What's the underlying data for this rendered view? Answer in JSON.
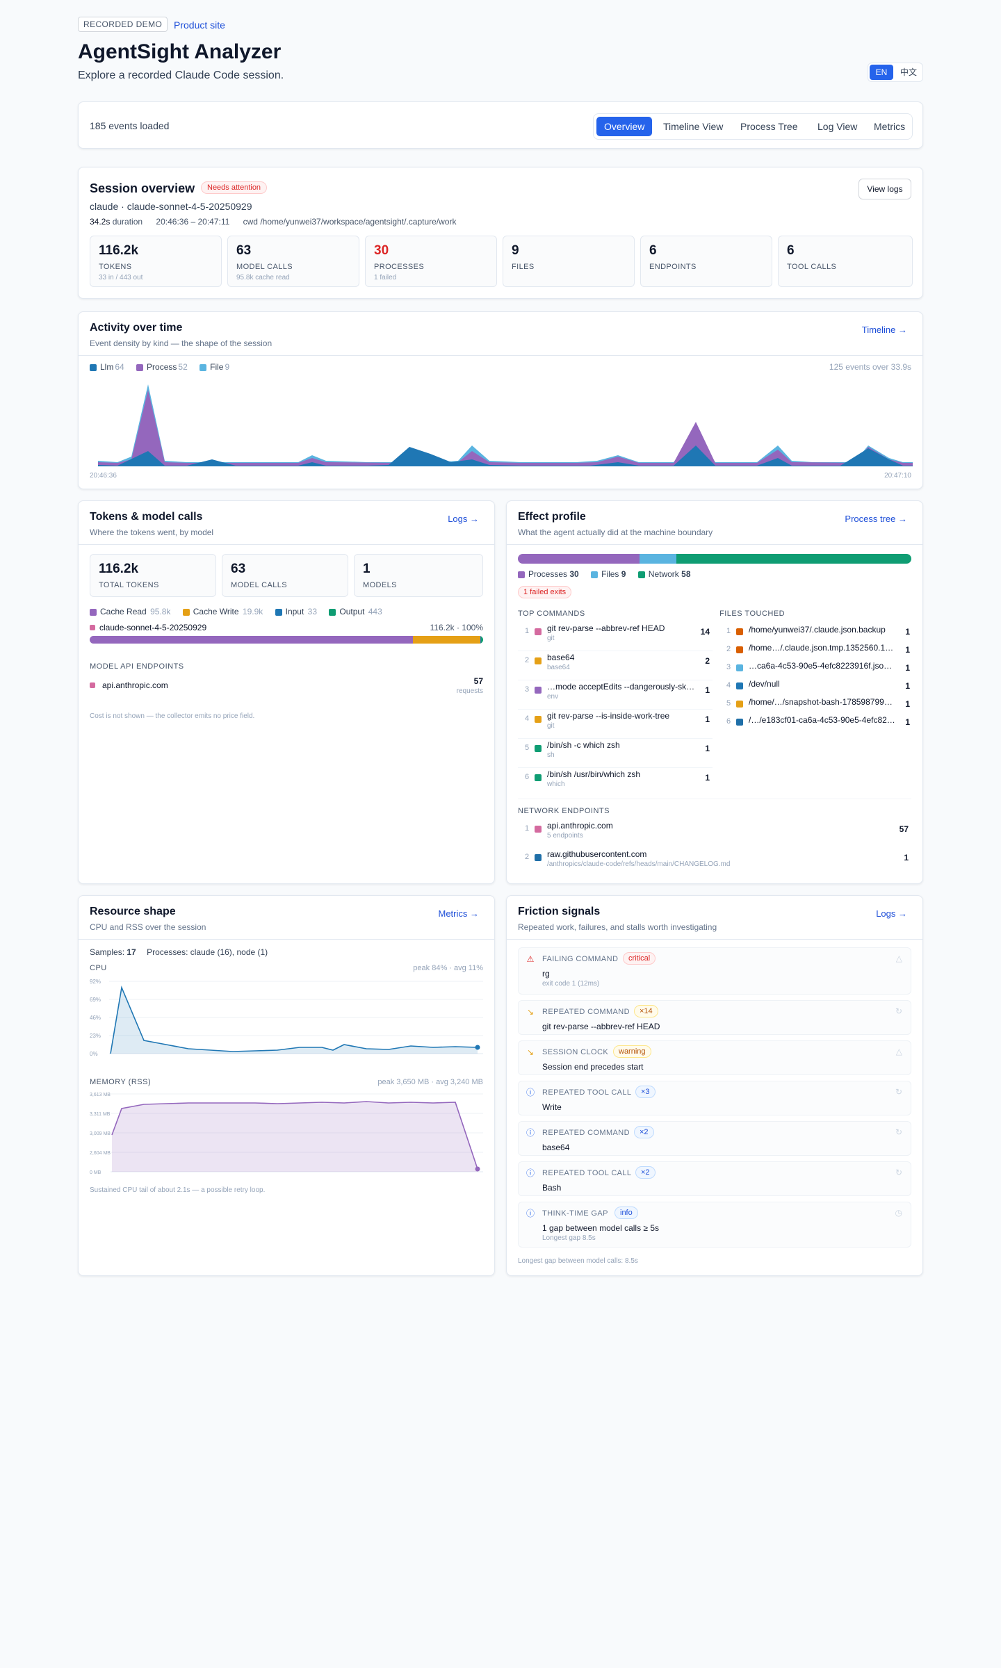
{
  "header": {
    "badge": "RECORDED DEMO",
    "product_link": "Product site",
    "title": "AgentSight Analyzer",
    "subtitle": "Explore a recorded Claude Code session.",
    "lang_en": "EN",
    "lang_zh": "中文"
  },
  "toolbar": {
    "events_loaded": "185 events loaded",
    "tabs": [
      "Overview",
      "Timeline View",
      "Process Tree",
      "Log View",
      "Metrics"
    ],
    "active_tab": "Overview"
  },
  "session": {
    "title": "Session overview",
    "status": "Needs attention",
    "agent_line": "claude · claude-sonnet-4-5-20250929",
    "duration_value": "34.2s",
    "duration_label": "duration",
    "time_range": "20:46:36 – 20:47:11",
    "cwd": "cwd /home/yunwei37/workspace/agentsight/.capture/work",
    "view_logs": "View logs",
    "stats": [
      {
        "value": "116.2k",
        "label": "TOKENS",
        "sub": "33 in / 443 out",
        "alert": false
      },
      {
        "value": "63",
        "label": "MODEL CALLS",
        "sub": "95.8k cache read",
        "alert": false
      },
      {
        "value": "30",
        "label": "PROCESSES",
        "sub": "1 failed",
        "alert": true
      },
      {
        "value": "9",
        "label": "FILES",
        "sub": "",
        "alert": false
      },
      {
        "value": "6",
        "label": "ENDPOINTS",
        "sub": "",
        "alert": false
      },
      {
        "value": "6",
        "label": "TOOL CALLS",
        "sub": "",
        "alert": false
      }
    ]
  },
  "activity": {
    "title": "Activity over time",
    "subtitle": "Event density by kind — the shape of the session",
    "link": "Timeline →",
    "legend": [
      {
        "name": "Llm",
        "count": "64",
        "color": "#1f77b4"
      },
      {
        "name": "Process",
        "count": "52",
        "color": "#9467bd"
      },
      {
        "name": "File",
        "count": "9",
        "color": "#5ab4e0"
      }
    ],
    "summary": "125 events over 33.9s",
    "x_start": "20:46:36",
    "x_end": "20:47:10"
  },
  "tokens": {
    "title": "Tokens & model calls",
    "subtitle": "Where the tokens went, by model",
    "link": "Logs →",
    "stats": [
      {
        "value": "116.2k",
        "label": "TOTAL TOKENS"
      },
      {
        "value": "63",
        "label": "MODEL CALLS"
      },
      {
        "value": "1",
        "label": "MODELS"
      }
    ],
    "legend": [
      {
        "name": "Cache Read",
        "count": "95.8k",
        "color": "#9467bd"
      },
      {
        "name": "Cache Write",
        "count": "19.9k",
        "color": "#e5a016"
      },
      {
        "name": "Input",
        "count": "33",
        "color": "#1f77b4"
      },
      {
        "name": "Output",
        "count": "443",
        "color": "#0f9d73"
      }
    ],
    "model_name": "claude-sonnet-4-5-20250929",
    "model_total": "116.2k · 100%",
    "model_share": {
      "cache_read": 95.8,
      "cache_write": 19.9,
      "input": 0.033,
      "output": 0.443
    },
    "endpoints_label": "MODEL API ENDPOINTS",
    "endpoint_name": "api.anthropic.com",
    "endpoint_count": "57",
    "endpoint_unit": "requests",
    "footnote": "Cost is not shown — the collector emits no price field."
  },
  "effect": {
    "title": "Effect profile",
    "subtitle": "What the agent actually did at the machine boundary",
    "link": "Process tree →",
    "bar": [
      {
        "name": "Processes",
        "count": "30",
        "value": 30,
        "color": "#9467bd"
      },
      {
        "name": "Files",
        "count": "9",
        "value": 9,
        "color": "#5ab4e0"
      },
      {
        "name": "Network",
        "count": "58",
        "value": 58,
        "color": "#0f9d73"
      }
    ],
    "failed": "1 failed exits",
    "top_commands_label": "TOP COMMANDS",
    "commands": [
      {
        "n": "1",
        "cmd": "git rev-parse --abbrev-ref HEAD",
        "bin": "git",
        "count": "14",
        "color": "#d46a9f"
      },
      {
        "n": "2",
        "cmd": "base64",
        "bin": "base64",
        "count": "2",
        "color": "#e5a016"
      },
      {
        "n": "3",
        "cmd": "…mode acceptEdits --dangerously-ski…",
        "bin": "env",
        "count": "1",
        "color": "#9467bd"
      },
      {
        "n": "4",
        "cmd": "git rev-parse --is-inside-work-tree",
        "bin": "git",
        "count": "1",
        "color": "#e5a016"
      },
      {
        "n": "5",
        "cmd": "/bin/sh -c which zsh",
        "bin": "sh",
        "count": "1",
        "color": "#0f9d73"
      },
      {
        "n": "6",
        "cmd": "/bin/sh /usr/bin/which zsh",
        "bin": "which",
        "count": "1",
        "color": "#0f9d73"
      }
    ],
    "files_label": "FILES TOUCHED",
    "files": [
      {
        "n": "1",
        "path": "/home/yunwei37/.claude.json.backup",
        "count": "1",
        "color": "#d95f02"
      },
      {
        "n": "2",
        "path": "/home…/.claude.json.tmp.1352560.17…",
        "count": "1",
        "color": "#d95f02"
      },
      {
        "n": "3",
        "path": "…ca6a-4c53-90e5-4efc8223916f.json…",
        "count": "1",
        "color": "#5ab4e0"
      },
      {
        "n": "4",
        "path": "/dev/null",
        "count": "1",
        "color": "#1f77b4"
      },
      {
        "n": "5",
        "path": "/home/…/snapshot-bash-1785987999…",
        "count": "1",
        "color": "#e5a016"
      },
      {
        "n": "6",
        "path": "/…/e183cf01-ca6a-4c53-90e5-4efc822…",
        "count": "1",
        "color": "#1f6fa8"
      }
    ],
    "network_label": "NETWORK ENDPOINTS",
    "network": [
      {
        "n": "1",
        "host": "api.anthropic.com",
        "sub": "5 endpoints",
        "count": "57",
        "color": "#d46a9f"
      },
      {
        "n": "2",
        "host": "raw.githubusercontent.com",
        "sub": "/anthropics/claude-code/refs/heads/main/CHANGELOG.md",
        "count": "1",
        "color": "#1f6fa8"
      }
    ]
  },
  "resource": {
    "title": "Resource shape",
    "subtitle": "CPU and RSS over the session",
    "link": "Metrics →",
    "samples_label": "Samples:",
    "samples_value": "17",
    "processes": "Processes: claude (16), node (1)",
    "cpu_label": "CPU",
    "cpu_summary": "peak 84% · avg 11%",
    "cpu_ticks": [
      "92%",
      "69%",
      "46%",
      "23%",
      "0%"
    ],
    "mem_label": "MEMORY (RSS)",
    "mem_summary": "peak 3,650 MB · avg 3,240 MB",
    "mem_ticks": [
      "3,613 MB",
      "3,311 MB",
      "3,009 MB",
      "2,604 MB",
      "0 MB"
    ],
    "footnote": "Sustained CPU tail of about 2.1s — a possible retry loop.",
    "cpu_color": "#1f77b4",
    "mem_color": "#9467bd"
  },
  "friction": {
    "title": "Friction signals",
    "subtitle": "Repeated work, failures, and stalls worth investigating",
    "link": "Logs →",
    "signals": [
      {
        "kind": "FAILING COMMAND",
        "badge": "critical",
        "level": "critical",
        "text": "rg",
        "sub": "exit code 1 (12ms)",
        "icon": "warning-icon"
      },
      {
        "kind": "REPEATED COMMAND",
        "badge": "×14",
        "level": "warning",
        "text": "git rev-parse --abbrev-ref HEAD",
        "sub": "",
        "icon": "trend-icon"
      },
      {
        "kind": "SESSION CLOCK",
        "badge": "warning",
        "level": "warning",
        "text": "Session end precedes start",
        "sub": "",
        "icon": "trend-icon"
      },
      {
        "kind": "REPEATED TOOL CALL",
        "badge": "×3",
        "level": "info",
        "text": "Write",
        "sub": "",
        "icon": "info-icon"
      },
      {
        "kind": "REPEATED COMMAND",
        "badge": "×2",
        "level": "info",
        "text": "base64",
        "sub": "",
        "icon": "info-icon"
      },
      {
        "kind": "REPEATED TOOL CALL",
        "badge": "×2",
        "level": "info",
        "text": "Bash",
        "sub": "",
        "icon": "info-icon"
      },
      {
        "kind": "THINK-TIME GAP",
        "badge": "info",
        "level": "info",
        "text": "1 gap between model calls ≥ 5s",
        "sub": "Longest gap 8.5s",
        "icon": "info-icon"
      }
    ],
    "footnote": "Longest gap between model calls: 8.5s"
  }
}
